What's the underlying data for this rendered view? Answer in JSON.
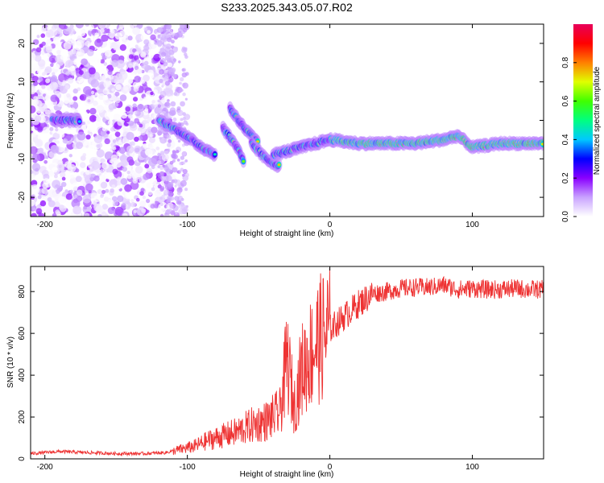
{
  "title": "S233.2025.343.05.07.R02",
  "chart_data": [
    {
      "type": "heatmap",
      "name": "spectrogram",
      "xlabel": "Height of straight line (km)",
      "ylabel": "Frequency (Hz)",
      "xlim": [
        -210,
        150
      ],
      "ylim": [
        -25,
        25
      ],
      "xticks": [
        -200,
        -100,
        0,
        100
      ],
      "yticks": [
        -20,
        -10,
        0,
        10,
        20
      ],
      "colorbar": {
        "label": "Normalized spectral amplitude",
        "range": [
          0,
          1
        ],
        "ticks": [
          "0.0",
          "0.2",
          "0.4",
          "0.6",
          "0.8"
        ],
        "colors": [
          "#ffffff",
          "#c9a3ff",
          "#8a00ff",
          "#0000ff",
          "#00c8ff",
          "#00ff80",
          "#40ff00",
          "#e0ff00",
          "#ff7f00",
          "#ff0000",
          "#e8005a"
        ]
      },
      "ridge_segments": [
        {
          "x": [
            -195,
            -175
          ],
          "y": [
            0,
            0
          ]
        },
        {
          "x": [
            -120,
            -105,
            -90,
            -80
          ],
          "y": [
            0,
            -3,
            -7,
            -9
          ]
        },
        {
          "x": [
            -75,
            -65,
            -60
          ],
          "y": [
            -2,
            -7,
            -11
          ]
        },
        {
          "x": [
            -70,
            -60,
            -50
          ],
          "y": [
            3,
            -2,
            -6
          ]
        },
        {
          "x": [
            -55,
            -45,
            -35
          ],
          "y": [
            -6,
            -10,
            -12
          ]
        },
        {
          "x": [
            -40,
            -30,
            -20,
            -10,
            0,
            20,
            40,
            60,
            80,
            90,
            100,
            120,
            150
          ],
          "y": [
            -9,
            -8,
            -7,
            -6,
            -5,
            -6,
            -6,
            -6,
            -5,
            -4,
            -7,
            -6,
            -6
          ]
        }
      ]
    },
    {
      "type": "line",
      "name": "snr",
      "xlabel": "Height of straight line (km)",
      "ylabel": "SNR (10 * v/v)",
      "xlim": [
        -210,
        150
      ],
      "ylim": [
        0,
        920
      ],
      "xticks": [
        -200,
        -100,
        0,
        100
      ],
      "yticks": [
        0,
        200,
        400,
        600,
        800
      ],
      "color": "#ee3333",
      "x": [
        -210,
        -190,
        -170,
        -150,
        -130,
        -115,
        -105,
        -95,
        -85,
        -75,
        -65,
        -55,
        -45,
        -35,
        -30,
        -25,
        -20,
        -10,
        0,
        10,
        20,
        30,
        40,
        50,
        60,
        70,
        80,
        90,
        100,
        110,
        120,
        130,
        140,
        150
      ],
      "y": [
        25,
        35,
        30,
        25,
        25,
        30,
        45,
        60,
        90,
        110,
        130,
        160,
        180,
        220,
        480,
        250,
        420,
        550,
        620,
        680,
        740,
        790,
        800,
        815,
        820,
        820,
        830,
        810,
        815,
        810,
        810,
        815,
        810,
        810
      ]
    }
  ]
}
